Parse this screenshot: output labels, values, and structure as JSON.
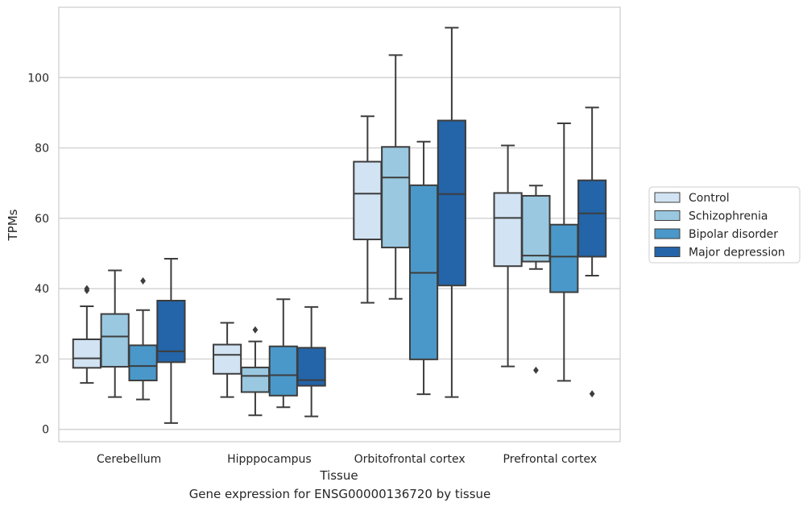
{
  "chart_data": {
    "type": "box",
    "xlabel": "Tissue",
    "ylabel": "TPMs",
    "caption": "Gene expression for ENSG00000136720 by tissue",
    "categories": [
      "Cerebellum",
      "Hipppocampus",
      "Orbitofrontal cortex",
      "Prefrontal cortex"
    ],
    "ylim": [
      -3.5,
      120
    ],
    "yticks": [
      0,
      20,
      40,
      60,
      80,
      100
    ],
    "grid": "horizontal",
    "legend": {
      "placement": "right",
      "entries": [
        "Control",
        "Schizophrenia",
        "Bipolar disorder",
        "Major depression"
      ]
    },
    "colors": [
      "#d2e3f3",
      "#9ac8e0",
      "#4a98c9",
      "#2464a8"
    ],
    "series": [
      {
        "name": "Control",
        "boxes": [
          {
            "whislo": 13.2,
            "q1": 17.5,
            "med": 20.2,
            "q3": 25.6,
            "whishi": 35.0,
            "fliers": [
              39.5,
              40.0
            ]
          },
          {
            "whislo": 9.2,
            "q1": 15.8,
            "med": 21.2,
            "q3": 24.1,
            "whishi": 30.3,
            "fliers": []
          },
          {
            "whislo": 36.0,
            "q1": 54.0,
            "med": 67.0,
            "q3": 76.1,
            "whishi": 89.0,
            "fliers": []
          },
          {
            "whislo": 17.9,
            "q1": 46.4,
            "med": 60.1,
            "q3": 67.2,
            "whishi": 80.7,
            "fliers": []
          }
        ]
      },
      {
        "name": "Schizophrenia",
        "boxes": [
          {
            "whislo": 9.2,
            "q1": 17.8,
            "med": 26.4,
            "q3": 32.8,
            "whishi": 45.2,
            "fliers": []
          },
          {
            "whislo": 4.0,
            "q1": 10.6,
            "med": 15.2,
            "q3": 17.6,
            "whishi": 25.0,
            "fliers": [
              28.3
            ]
          },
          {
            "whislo": 37.1,
            "q1": 51.7,
            "med": 71.6,
            "q3": 80.3,
            "whishi": 106.4,
            "fliers": []
          },
          {
            "whislo": 45.6,
            "q1": 47.7,
            "med": 49.4,
            "q3": 66.4,
            "whishi": 69.3,
            "fliers": [
              16.8
            ]
          }
        ]
      },
      {
        "name": "Bipolar disorder",
        "boxes": [
          {
            "whislo": 8.5,
            "q1": 13.9,
            "med": 18.0,
            "q3": 23.9,
            "whishi": 33.9,
            "fliers": [
              42.2
            ]
          },
          {
            "whislo": 6.3,
            "q1": 9.6,
            "med": 15.4,
            "q3": 23.6,
            "whishi": 37.0,
            "fliers": []
          },
          {
            "whislo": 10.0,
            "q1": 19.9,
            "med": 44.5,
            "q3": 69.4,
            "whishi": 81.8,
            "fliers": []
          },
          {
            "whislo": 13.8,
            "q1": 39.0,
            "med": 49.1,
            "q3": 58.2,
            "whishi": 87.0,
            "fliers": []
          }
        ]
      },
      {
        "name": "Major depression",
        "boxes": [
          {
            "whislo": 1.8,
            "q1": 19.1,
            "med": 22.2,
            "q3": 36.6,
            "whishi": 48.5,
            "fliers": []
          },
          {
            "whislo": 3.7,
            "q1": 12.4,
            "med": 14.0,
            "q3": 23.2,
            "whishi": 34.8,
            "fliers": []
          },
          {
            "whislo": 9.2,
            "q1": 40.9,
            "med": 66.9,
            "q3": 87.8,
            "whishi": 114.2,
            "fliers": []
          },
          {
            "whislo": 43.7,
            "q1": 49.1,
            "med": 61.4,
            "q3": 70.8,
            "whishi": 91.5,
            "fliers": [
              10.1
            ]
          }
        ]
      }
    ]
  }
}
